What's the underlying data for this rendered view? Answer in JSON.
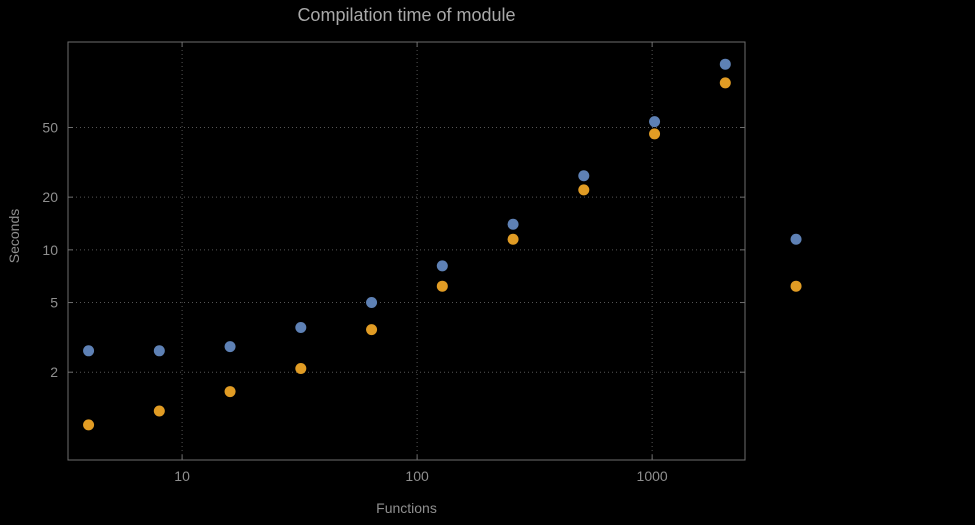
{
  "chart_data": {
    "type": "scatter",
    "title": "Compilation time of module",
    "xlabel": "Functions",
    "ylabel": "Seconds",
    "xscale": "log",
    "yscale": "log",
    "xlim": [
      3.27,
      2484
    ],
    "ylim": [
      0.63,
      154
    ],
    "xticks": [
      10,
      100,
      1000
    ],
    "yticks": [
      2,
      5,
      10,
      20,
      50
    ],
    "grid": "dotted-major",
    "legend": "none",
    "x": [
      4,
      8,
      16,
      32,
      64,
      128,
      256,
      512,
      1024,
      2048,
      4096
    ],
    "series": [
      {
        "name": "series-blue",
        "color": "#5E81B5",
        "values": [
          2.65,
          2.65,
          2.8,
          3.6,
          5.0,
          8.1,
          14,
          26.5,
          54,
          115,
          11.5
        ]
      },
      {
        "name": "series-orange",
        "color": "#E19C24",
        "values": [
          1.0,
          1.2,
          1.55,
          2.1,
          3.5,
          6.2,
          11.5,
          22,
          46,
          90,
          6.2
        ]
      }
    ]
  },
  "colors": {
    "background": "#000000",
    "frame": "#6e6e6e",
    "grid": "#565656",
    "tick_text": "#8f8f8f",
    "title_text": "#a9a9a9",
    "axis_label_text": "#8f8f8f"
  },
  "layout_note": "rightmost pair of points renders outside the plot frame"
}
